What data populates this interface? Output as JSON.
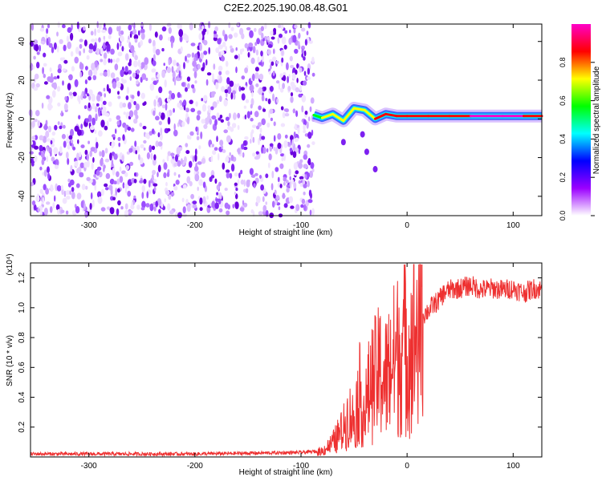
{
  "title": "C2E2.2025.190.08.48.G01",
  "chart_data": [
    {
      "type": "heatmap",
      "xlabel": "Height of straight line (km)",
      "ylabel": "Frequency (Hz)",
      "xlim": [
        -355,
        127
      ],
      "ylim": [
        -50,
        49
      ],
      "x_ticks": [
        -300,
        -200,
        -100,
        0,
        100
      ],
      "y_ticks": [
        -40,
        -20,
        0,
        20,
        40
      ],
      "colorbar": {
        "label": "Normalized spectral amplitude",
        "range": [
          0,
          1
        ],
        "ticks": [
          "0.0",
          "0.2",
          "0.4",
          "0.6",
          "0.8"
        ],
        "colors": [
          "#ffffff",
          "#9b00ff",
          "#0000ff",
          "#00ffff",
          "#00ff00",
          "#ffff00",
          "#ff0000",
          "#ff00c8"
        ]
      },
      "noise_region_x": [
        -355,
        -88
      ],
      "signal_track": [
        {
          "x": -88,
          "f": 2.0,
          "amp": 0.5
        },
        {
          "x": -80,
          "f": 0.5,
          "amp": 0.6
        },
        {
          "x": -70,
          "f": 2.5,
          "amp": 0.55
        },
        {
          "x": -60,
          "f": -1.0,
          "amp": 0.65
        },
        {
          "x": -50,
          "f": 5.5,
          "amp": 0.6
        },
        {
          "x": -40,
          "f": 4.5,
          "amp": 0.7
        },
        {
          "x": -30,
          "f": 0.0,
          "amp": 0.7
        },
        {
          "x": -20,
          "f": 2.5,
          "amp": 0.75
        },
        {
          "x": -10,
          "f": 1.5,
          "amp": 0.8
        },
        {
          "x": 0,
          "f": 1.5,
          "amp": 0.8
        },
        {
          "x": 20,
          "f": 1.5,
          "amp": 0.75
        },
        {
          "x": 40,
          "f": 1.5,
          "amp": 0.8
        },
        {
          "x": 60,
          "f": 1.5,
          "amp": 0.85
        },
        {
          "x": 75,
          "f": 1.5,
          "amp": 0.95
        },
        {
          "x": 90,
          "f": 1.5,
          "amp": 0.9
        },
        {
          "x": 110,
          "f": 1.5,
          "amp": 0.85
        },
        {
          "x": 127,
          "f": 1.5,
          "amp": 0.8
        }
      ]
    },
    {
      "type": "line",
      "xlabel": "Height of straight line (km)",
      "ylabel": "SNR (10 * v/v)",
      "y_scale_label": "(x10⁴)",
      "xlim": [
        -355,
        127
      ],
      "ylim": [
        0,
        1.3
      ],
      "x_ticks": [
        -300,
        -200,
        -100,
        0,
        100
      ],
      "y_ticks": [
        "0.2",
        "0.4",
        "0.6",
        "0.8",
        "1.0",
        "1.2"
      ],
      "series": [
        {
          "color": "#ee3030",
          "x": [
            -355,
            -300,
            -250,
            -200,
            -150,
            -100,
            -80,
            -70,
            -60,
            -55,
            -50,
            -45,
            -40,
            -35,
            -30,
            -25,
            -20,
            -15,
            -10,
            -5,
            0,
            5,
            10,
            15,
            20,
            25,
            30,
            35,
            40,
            50,
            60,
            70,
            80,
            90,
            100,
            110,
            120,
            127
          ],
          "y": [
            0.02,
            0.02,
            0.02,
            0.02,
            0.025,
            0.03,
            0.04,
            0.1,
            0.2,
            0.3,
            0.25,
            0.45,
            0.3,
            0.5,
            0.55,
            0.6,
            0.55,
            0.65,
            0.7,
            0.8,
            0.75,
            0.8,
            0.9,
            0.95,
            0.98,
            1.02,
            1.05,
            1.1,
            1.12,
            1.13,
            1.15,
            1.12,
            1.13,
            1.12,
            1.13,
            1.1,
            1.13,
            1.12
          ]
        }
      ]
    }
  ]
}
